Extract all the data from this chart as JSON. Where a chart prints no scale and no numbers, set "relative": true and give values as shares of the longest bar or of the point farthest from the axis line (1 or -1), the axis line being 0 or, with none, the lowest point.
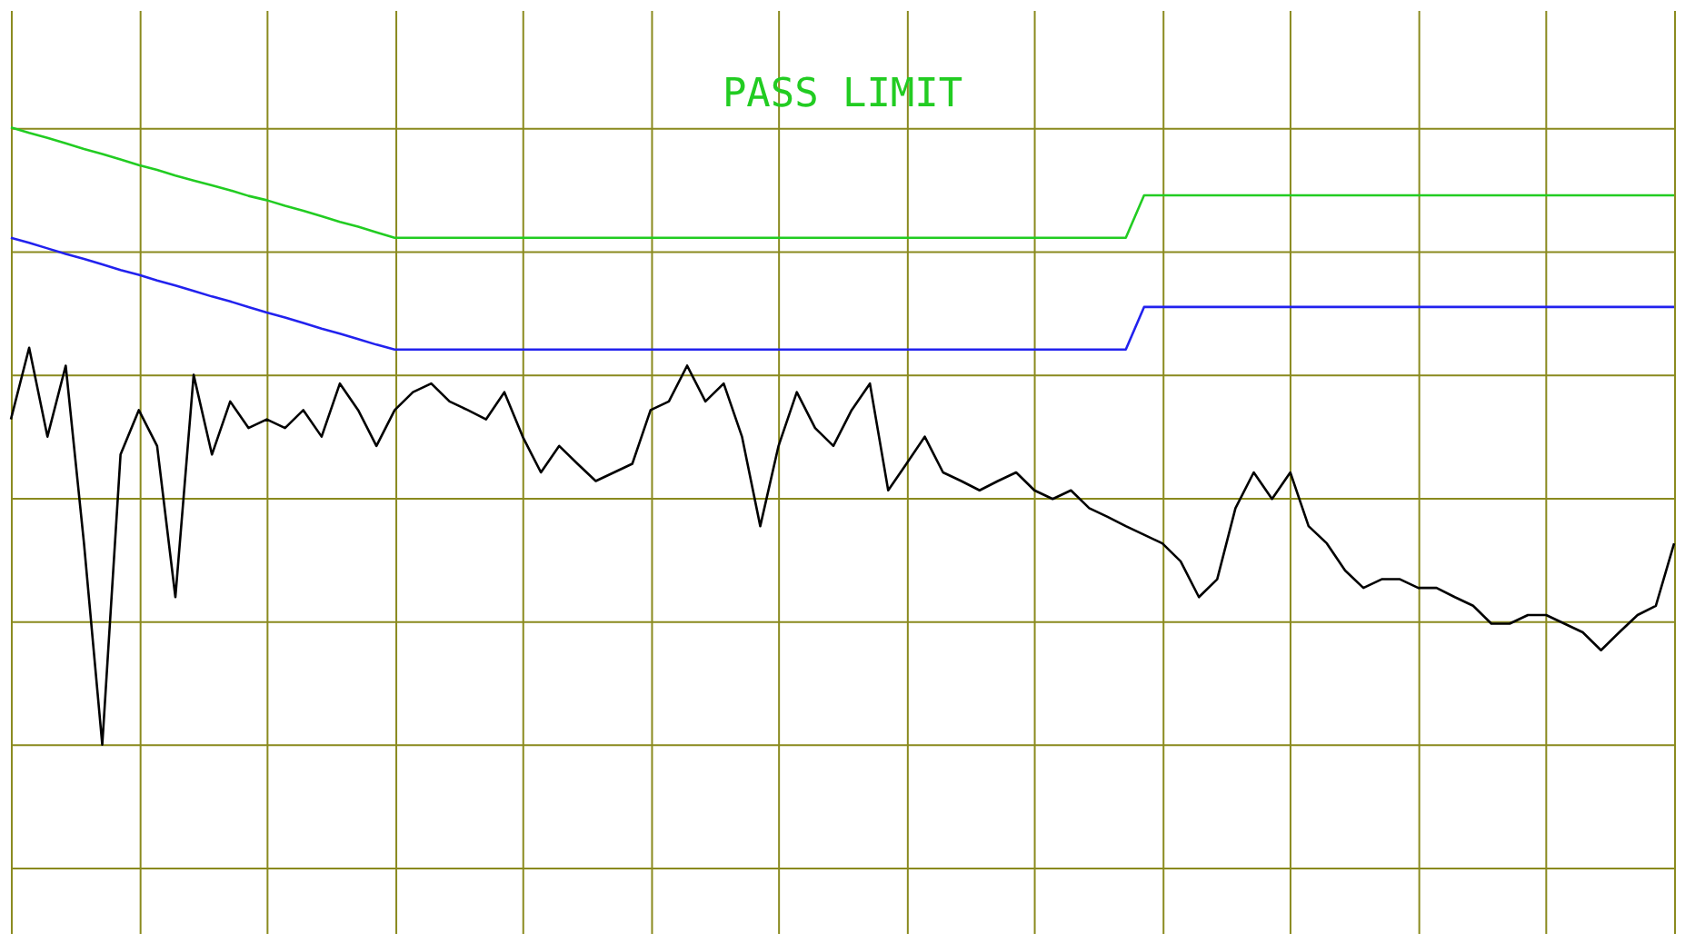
{
  "chart_data": {
    "type": "line",
    "relative": true,
    "grid": true,
    "annotations": [
      "PASS LIMIT"
    ],
    "categories": [
      null,
      null,
      null,
      null,
      null,
      null,
      null,
      null,
      null,
      null,
      null,
      null,
      null,
      null,
      null,
      null,
      null,
      null,
      null,
      null,
      null,
      null,
      null,
      null,
      null,
      null,
      null,
      null,
      null,
      null,
      null,
      null,
      null,
      null,
      null,
      null,
      null,
      null,
      null,
      null,
      null,
      null,
      null,
      null,
      null,
      null,
      null,
      null,
      null,
      null,
      null,
      null,
      null,
      null,
      null,
      null,
      null,
      null,
      null,
      null,
      null,
      null,
      null,
      null,
      null,
      null,
      null,
      null,
      null,
      null,
      null,
      null,
      null,
      null,
      null,
      null,
      null,
      null,
      null,
      null,
      null,
      null,
      null,
      null,
      null,
      null,
      null,
      null,
      null,
      null,
      null,
      null
    ],
    "series": [
      {
        "color": "#22cc22",
        "values": [
          1.0,
          0.991,
          0.983,
          0.974,
          0.965,
          0.957,
          0.948,
          0.939,
          0.931,
          0.922,
          0.914,
          0.906,
          0.898,
          0.889,
          0.882,
          0.873,
          0.865,
          0.856,
          0.847,
          0.839,
          0.83,
          0.821,
          0.821,
          0.821,
          0.821,
          0.821,
          0.821,
          0.821,
          0.821,
          0.821,
          0.821,
          0.821,
          0.821,
          0.821,
          0.821,
          0.821,
          0.821,
          0.821,
          0.821,
          0.821,
          0.821,
          0.821,
          0.821,
          0.821,
          0.821,
          0.821,
          0.821,
          0.821,
          0.821,
          0.821,
          0.821,
          0.821,
          0.821,
          0.821,
          0.821,
          0.821,
          0.821,
          0.821,
          0.821,
          0.821,
          0.821,
          0.821,
          0.89,
          0.89,
          0.89,
          0.89,
          0.89,
          0.89,
          0.89,
          0.89,
          0.89,
          0.89,
          0.89,
          0.89,
          0.89,
          0.89,
          0.89,
          0.89,
          0.89,
          0.89,
          0.89,
          0.89,
          0.89,
          0.89,
          0.89,
          0.89,
          0.89,
          0.89,
          0.89,
          0.89,
          0.89,
          0.89
        ]
      },
      {
        "color": "#2222ee",
        "values": [
          0.821,
          0.813,
          0.804,
          0.795,
          0.787,
          0.778,
          0.769,
          0.761,
          0.752,
          0.744,
          0.735,
          0.726,
          0.718,
          0.709,
          0.7,
          0.692,
          0.683,
          0.674,
          0.666,
          0.657,
          0.648,
          0.64,
          0.64,
          0.64,
          0.64,
          0.64,
          0.64,
          0.64,
          0.64,
          0.64,
          0.64,
          0.64,
          0.64,
          0.64,
          0.64,
          0.64,
          0.64,
          0.64,
          0.64,
          0.64,
          0.64,
          0.64,
          0.64,
          0.64,
          0.64,
          0.64,
          0.64,
          0.64,
          0.64,
          0.64,
          0.64,
          0.64,
          0.64,
          0.64,
          0.64,
          0.64,
          0.64,
          0.64,
          0.64,
          0.64,
          0.64,
          0.64,
          0.709,
          0.709,
          0.709,
          0.709,
          0.709,
          0.709,
          0.709,
          0.709,
          0.709,
          0.709,
          0.709,
          0.709,
          0.709,
          0.709,
          0.709,
          0.709,
          0.709,
          0.709,
          0.709,
          0.709,
          0.709,
          0.709,
          0.709,
          0.709,
          0.709,
          0.709,
          0.709,
          0.709,
          0.709,
          0.709
        ]
      },
      {
        "color": "#000000",
        "values": [
          0.527,
          0.643,
          0.499,
          0.614,
          0.326,
          0,
          0.47,
          0.542,
          0.484,
          0.239,
          0.599,
          0.47,
          0.556,
          0.513,
          0.527,
          0.513,
          0.542,
          0.499,
          0.585,
          0.542,
          0.484,
          0.542,
          0.571,
          0.585,
          0.556,
          0.542,
          0.527,
          0.571,
          0.499,
          0.441,
          0.484,
          0.455,
          0.427,
          0.441,
          0.455,
          0.542,
          0.556,
          0.614,
          0.556,
          0.585,
          0.499,
          0.354,
          0.484,
          0.571,
          0.513,
          0.484,
          0.542,
          0.585,
          0.412,
          0.455,
          0.499,
          0.441,
          0.427,
          0.412,
          0.427,
          0.441,
          0.412,
          0.398,
          0.412,
          0.383,
          0.369,
          0.354,
          0.34,
          0.326,
          0.297,
          0.239,
          0.268,
          0.383,
          0.441,
          0.398,
          0.441,
          0.354,
          0.326,
          0.282,
          0.254,
          0.268,
          0.268,
          0.254,
          0.254,
          0.239,
          0.225,
          0.196,
          0.196,
          0.21,
          0.21,
          0.196,
          0.182,
          0.153,
          0.182,
          0.21,
          0.225,
          0.326
        ]
      }
    ]
  }
}
